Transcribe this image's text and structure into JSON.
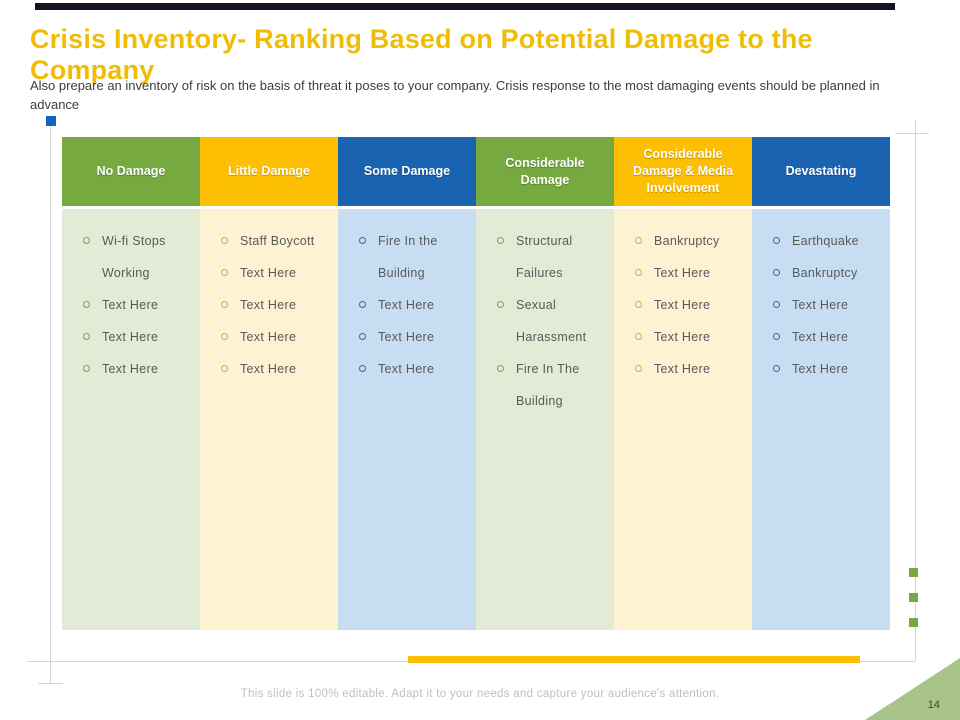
{
  "slide": {
    "title": "Crisis Inventory- Ranking Based on Potential Damage to the Company",
    "subtitle": "Also prepare an inventory of risk on the basis of threat it poses to your company. Crisis response to the most damaging events should be planned in advance",
    "footer": "This slide is 100% editable. Adapt it to your needs and capture your audience's attention.",
    "page_number": "14"
  },
  "colors": {
    "title_yellow": "#f0bd05",
    "header_green": "#76a93f",
    "header_yellow": "#fcbf01",
    "header_blue": "#1a63b0",
    "body_green": "#e3ebd7",
    "body_yellow": "#fdf2d2",
    "body_blue": "#c7ddf2",
    "accent_bar_yellow": "#fcbf01",
    "corner_triangle_green": "#a9c48b",
    "marker_blue": "#1565c0",
    "marker_green": "#76a93f",
    "top_bar_dark": "#11161f"
  },
  "table": {
    "columns": [
      {
        "header": "No Damage",
        "theme": "green",
        "items": [
          "Wi-fi Stops Working",
          "Text Here",
          "Text Here",
          "Text Here"
        ]
      },
      {
        "header": "Little Damage",
        "theme": "yellow",
        "items": [
          "Staff Boycott",
          "Text Here",
          "Text Here",
          "Text Here",
          "Text Here"
        ]
      },
      {
        "header": "Some Damage",
        "theme": "blue",
        "items": [
          "Fire In the Building",
          "Text Here",
          "Text Here",
          "Text Here"
        ]
      },
      {
        "header": "Considerable Damage",
        "theme": "green",
        "items": [
          "Structural Failures",
          "Sexual Harassment",
          "Fire In The Building"
        ]
      },
      {
        "header": "Considerable Damage & Media Involvement",
        "theme": "yellow",
        "items": [
          "Bankruptcy",
          "Text Here",
          "Text Here",
          "Text Here",
          "Text Here"
        ]
      },
      {
        "header": "Devastating",
        "theme": "blue",
        "items": [
          "Earthquake",
          "Bankruptcy",
          "Text Here",
          "Text Here",
          "Text Here"
        ]
      }
    ]
  }
}
